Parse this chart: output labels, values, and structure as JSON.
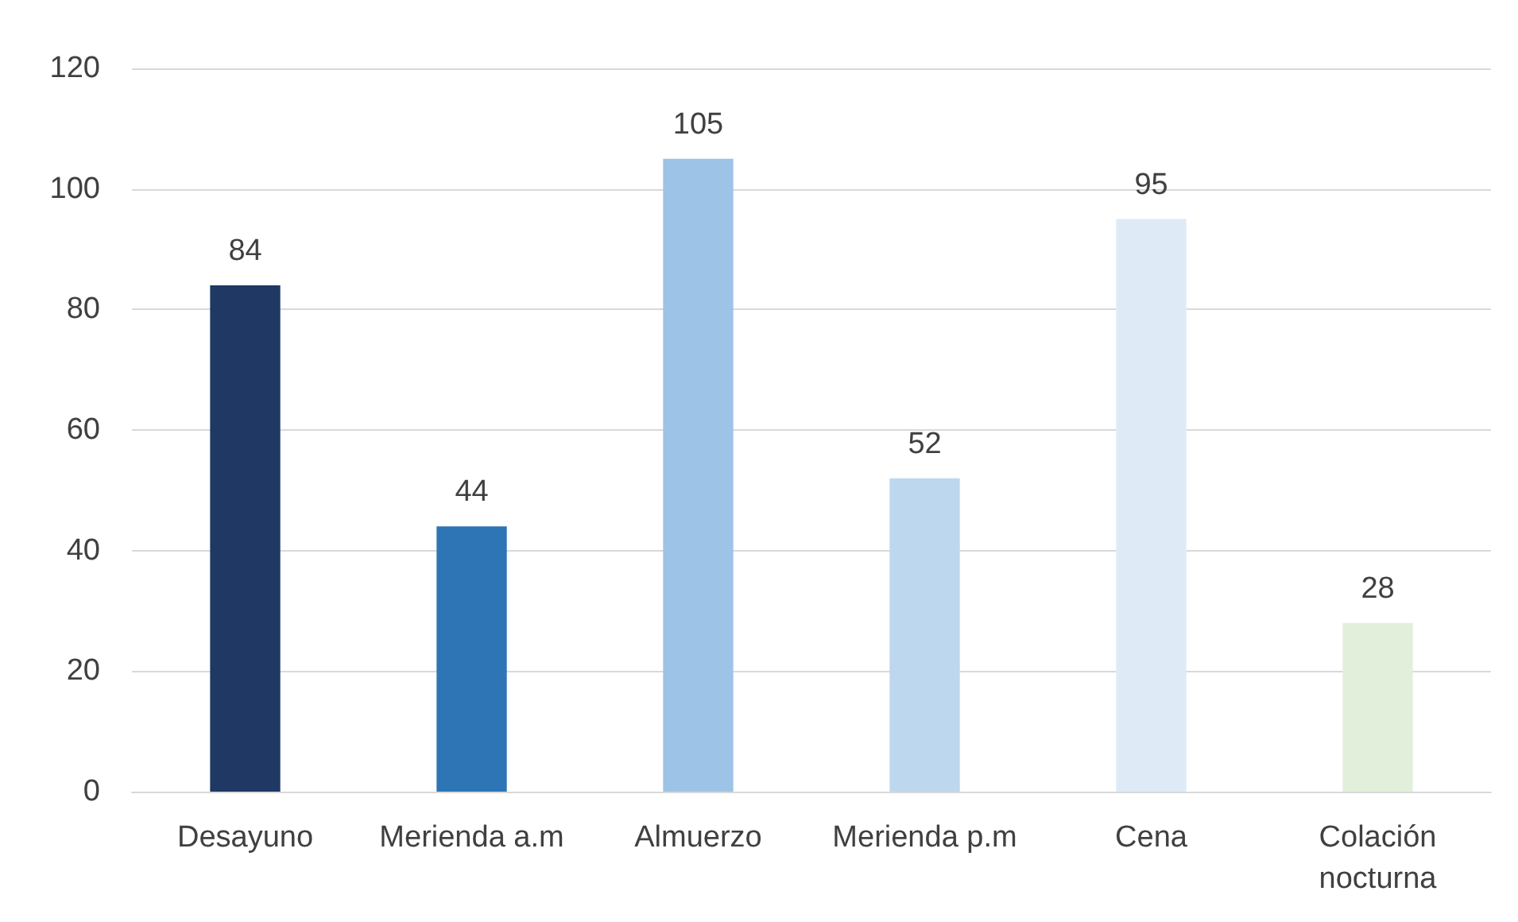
{
  "chart_data": {
    "type": "bar",
    "categories": [
      "Desayuno",
      "Merienda a.m",
      "Almuerzo",
      "Merienda p.m",
      "Cena",
      "Colación\nnocturna"
    ],
    "values": [
      84,
      44,
      105,
      52,
      95,
      28
    ],
    "colors": [
      "#1f3864",
      "#2e75b6",
      "#9dc3e6",
      "#bdd7ee",
      "#deebf7",
      "#e2efda"
    ],
    "ylim": [
      0,
      120
    ],
    "yticks": [
      0,
      20,
      40,
      60,
      80,
      100,
      120
    ],
    "grid": "y",
    "data_labels": true
  }
}
